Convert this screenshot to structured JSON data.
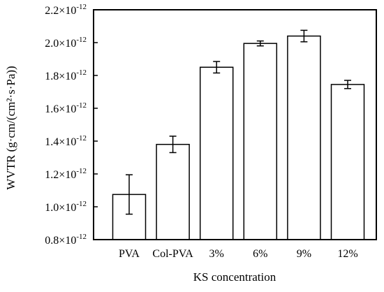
{
  "chart_data": {
    "type": "bar",
    "xlabel": "KS concentration",
    "ylabel": "WVTR (g·cm/(cm²·s·Pa))",
    "categories": [
      "PVA",
      "Col-PVA",
      "3%",
      "6%",
      "9%",
      "12%"
    ],
    "values": [
      1.075e-12,
      1.38e-12,
      1.85e-12,
      1.995e-12,
      2.04e-12,
      1.745e-12
    ],
    "errors": [
      1.2e-13,
      5e-14,
      3.5e-14,
      1.5e-14,
      3.5e-14,
      2.5e-14
    ],
    "ylim": [
      8e-13,
      2.2e-12
    ],
    "yticks": [
      8e-13,
      1e-12,
      1.2e-12,
      1.4e-12,
      1.6e-12,
      1.8e-12,
      2e-12,
      2.2e-12
    ],
    "ytick_labels": [
      {
        "mantissa": "0.8",
        "exp": "-12"
      },
      {
        "mantissa": "1.0",
        "exp": "-12"
      },
      {
        "mantissa": "1.2",
        "exp": "-12"
      },
      {
        "mantissa": "1.4",
        "exp": "-12"
      },
      {
        "mantissa": "1.6",
        "exp": "-12"
      },
      {
        "mantissa": "1.8",
        "exp": "-12"
      },
      {
        "mantissa": "2.0",
        "exp": "-12"
      },
      {
        "mantissa": "2.2",
        "exp": "-12"
      }
    ],
    "bar_fill": "#ffffff",
    "bar_stroke": "#000000",
    "grid": false,
    "legend": "none"
  }
}
